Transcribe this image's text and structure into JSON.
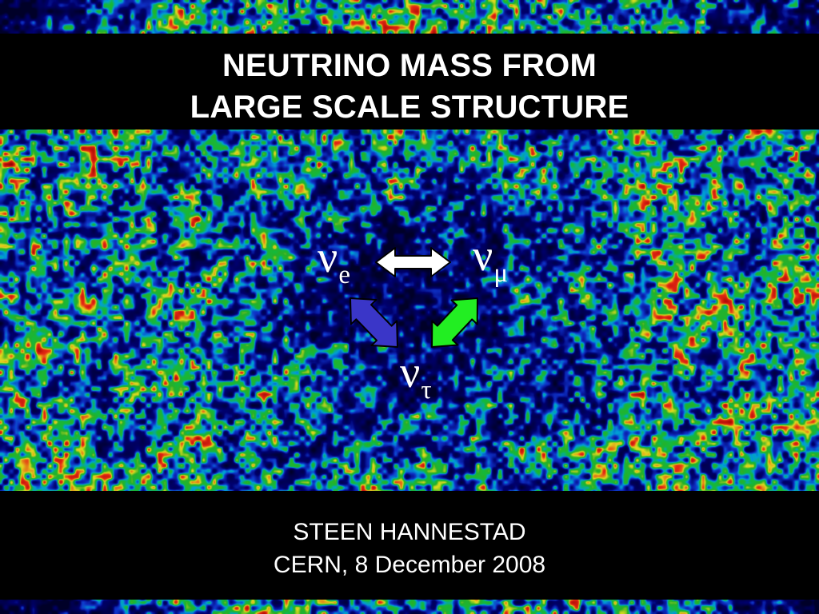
{
  "slide": {
    "title_lines": [
      "NEUTRINO MASS FROM",
      "LARGE SCALE STRUCTURE"
    ],
    "author": "STEEN HANNESTAD",
    "venue_date": "CERN, 8 December 2008"
  },
  "neutrinos": {
    "electron": {
      "symbol": "ν",
      "subscript": "e"
    },
    "muon": {
      "symbol": "ν",
      "subscript": "μ"
    },
    "tau": {
      "symbol": "ν",
      "subscript": "τ"
    }
  },
  "arrows": {
    "e_mu_color": "#ffffff",
    "e_tau_color": "#3a36c8",
    "mu_tau_color": "#22ee22"
  },
  "background": {
    "description_colors": [
      "#00005a",
      "#0a3fd0",
      "#00a8d8",
      "#1fbf3a",
      "#e8e020",
      "#d81010"
    ]
  }
}
